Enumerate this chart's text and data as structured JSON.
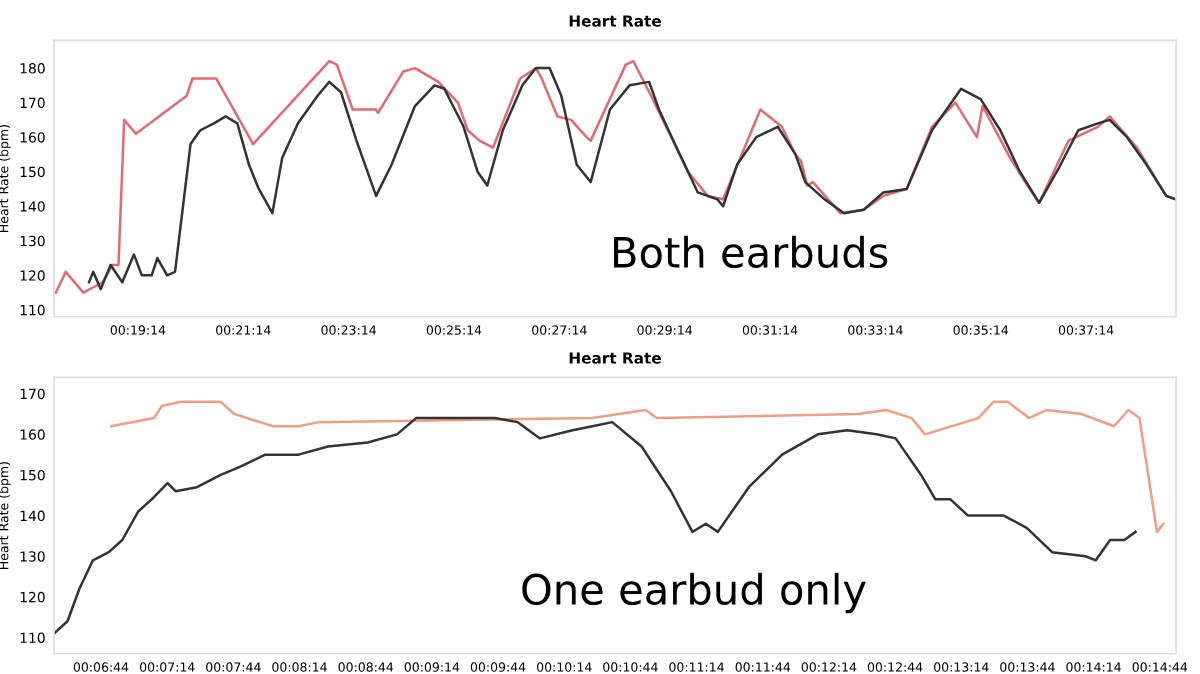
{
  "chart_data": [
    {
      "type": "line",
      "title": "Heart Rate",
      "ylabel": "Heart Rate (bpm)",
      "annotations": [
        "Both earbuds"
      ],
      "xlim": [
        0.294,
        0.649
      ],
      "ylim": [
        108,
        188
      ],
      "xticks": [
        {
          "value": 0.32056,
          "label": "00:19:14"
        },
        {
          "value": 0.35389,
          "label": "00:21:14"
        },
        {
          "value": 0.38722,
          "label": "00:23:14"
        },
        {
          "value": 0.42056,
          "label": "00:25:14"
        },
        {
          "value": 0.45389,
          "label": "00:27:14"
        },
        {
          "value": 0.48722,
          "label": "00:29:14"
        },
        {
          "value": 0.52056,
          "label": "00:31:14"
        },
        {
          "value": 0.55389,
          "label": "00:33:14"
        },
        {
          "value": 0.58722,
          "label": "00:35:14"
        },
        {
          "value": 0.62056,
          "label": "00:37:14"
        }
      ],
      "yticks": [
        110,
        120,
        130,
        140,
        150,
        160,
        170,
        180
      ],
      "grid": false,
      "legend": false,
      "series": [
        {
          "color": "#e26a74",
          "x": [
            0.2946,
            0.2977,
            0.3033,
            0.3094,
            0.3125,
            0.3144,
            0.3162,
            0.3199,
            0.336,
            0.3378,
            0.3453,
            0.357,
            0.3811,
            0.3835,
            0.3885,
            0.3959,
            0.3965,
            0.4045,
            0.4082,
            0.4156,
            0.4218,
            0.4249,
            0.4286,
            0.4329,
            0.4415,
            0.4465,
            0.4483,
            0.4533,
            0.4576,
            0.4625,
            0.4638,
            0.4749,
            0.4773,
            0.4829,
            0.4946,
            0.5008,
            0.5057,
            0.5175,
            0.5243,
            0.5286,
            0.5304,
            0.5323,
            0.5341,
            0.5428,
            0.5502,
            0.5564,
            0.5638,
            0.5718,
            0.5792,
            0.586,
            0.5878,
            0.5965,
            0.6027,
            0.6057,
            0.615,
            0.6243,
            0.628,
            0.6366,
            0.6459,
            0.649
          ],
          "values": [
            115,
            121,
            115,
            118,
            123,
            123,
            165,
            161,
            172,
            177,
            177,
            158,
            182,
            181,
            168,
            168,
            167,
            179,
            180,
            176,
            170,
            162,
            159,
            157,
            177,
            180,
            177,
            166,
            165,
            160,
            159,
            181,
            182,
            172,
            150,
            143,
            142,
            168,
            163,
            155,
            153,
            146,
            147,
            138,
            139,
            143,
            145,
            163,
            170,
            160,
            169,
            154,
            145,
            141,
            159,
            163,
            166,
            157,
            143,
            142
          ]
        },
        {
          "color": "#333333",
          "x": [
            0.3051,
            0.3064,
            0.3088,
            0.3119,
            0.3156,
            0.3193,
            0.3218,
            0.3249,
            0.3267,
            0.3298,
            0.3323,
            0.3372,
            0.3403,
            0.3446,
            0.3483,
            0.352,
            0.3557,
            0.3588,
            0.3631,
            0.3662,
            0.3712,
            0.3774,
            0.3811,
            0.3848,
            0.3897,
            0.3959,
            0.4008,
            0.4082,
            0.4144,
            0.4175,
            0.4236,
            0.428,
            0.4311,
            0.436,
            0.4422,
            0.4465,
            0.4508,
            0.4545,
            0.4594,
            0.4638,
            0.4699,
            0.4761,
            0.4823,
            0.4854,
            0.4915,
            0.4977,
            0.5039,
            0.5057,
            0.5101,
            0.5162,
            0.523,
            0.5286,
            0.5317,
            0.5378,
            0.544,
            0.5502,
            0.5564,
            0.5638,
            0.5718,
            0.581,
            0.5872,
            0.5934,
            0.5996,
            0.6057,
            0.6119,
            0.6181,
            0.6243,
            0.628,
            0.6335,
            0.6397,
            0.6459,
            0.649
          ],
          "values": [
            118,
            121,
            116,
            123,
            118,
            126,
            120,
            120,
            125,
            120,
            121,
            158,
            162,
            164,
            166,
            164,
            152,
            145,
            138,
            154,
            164,
            172,
            176,
            173,
            159,
            143,
            152,
            169,
            175,
            174,
            163,
            150,
            146,
            162,
            175,
            180,
            180,
            172,
            152,
            147,
            168,
            175,
            176,
            168,
            156,
            144,
            142,
            140,
            152,
            160,
            163,
            155,
            147,
            142,
            138,
            139,
            144,
            145,
            162,
            174,
            171,
            162,
            150,
            141,
            151,
            162,
            164,
            165,
            160,
            152,
            143,
            142
          ]
        }
      ]
    },
    {
      "type": "line",
      "title": "Heart Rate",
      "ylabel": "Heart Rate (bpm)",
      "annotations": [
        "One earbud only"
      ],
      "xlim": [
        0.1063,
        0.2476
      ],
      "ylim": [
        106,
        174
      ],
      "xticks": [
        {
          "value": 0.11222,
          "label": "00:06:44"
        },
        {
          "value": 0.12056,
          "label": "00:07:14"
        },
        {
          "value": 0.12889,
          "label": "00:07:44"
        },
        {
          "value": 0.13722,
          "label": "00:08:14"
        },
        {
          "value": 0.14556,
          "label": "00:08:44"
        },
        {
          "value": 0.15389,
          "label": "00:09:14"
        },
        {
          "value": 0.16222,
          "label": "00:09:44"
        },
        {
          "value": 0.17056,
          "label": "00:10:14"
        },
        {
          "value": 0.17889,
          "label": "00:10:44"
        },
        {
          "value": 0.18722,
          "label": "00:11:14"
        },
        {
          "value": 0.19556,
          "label": "00:11:44"
        },
        {
          "value": 0.20389,
          "label": "00:12:14"
        },
        {
          "value": 0.21222,
          "label": "00:12:44"
        },
        {
          "value": 0.22056,
          "label": "00:13:14"
        },
        {
          "value": 0.22889,
          "label": "00:13:44"
        },
        {
          "value": 0.23722,
          "label": "00:14:14"
        },
        {
          "value": 0.24556,
          "label": "00:14:44"
        }
      ],
      "yticks": [
        110,
        120,
        130,
        140,
        150,
        160,
        170
      ],
      "grid": false,
      "legend": false,
      "series": [
        {
          "color": "#eb9f86",
          "x": [
            0.1135,
            0.1189,
            0.1199,
            0.1223,
            0.1273,
            0.129,
            0.1339,
            0.1371,
            0.1396,
            0.1741,
            0.1808,
            0.1822,
            0.2076,
            0.2111,
            0.2143,
            0.216,
            0.2227,
            0.2246,
            0.2264,
            0.2291,
            0.2313,
            0.2357,
            0.2398,
            0.2416,
            0.243,
            0.2452,
            0.246
          ],
          "values": [
            162,
            164,
            167,
            168,
            168,
            165,
            162,
            162,
            163,
            164,
            166,
            164,
            165,
            166,
            164,
            160,
            164,
            168,
            168,
            164,
            166,
            165,
            162,
            166,
            164,
            136,
            138
          ]
        },
        {
          "color": "#333333",
          "x": [
            0.1063,
            0.108,
            0.1095,
            0.1112,
            0.1132,
            0.1149,
            0.1169,
            0.1186,
            0.1206,
            0.1216,
            0.1243,
            0.1273,
            0.1297,
            0.1329,
            0.1371,
            0.1408,
            0.1458,
            0.1495,
            0.1519,
            0.1593,
            0.1618,
            0.1647,
            0.1675,
            0.1716,
            0.1741,
            0.1766,
            0.1803,
            0.184,
            0.1867,
            0.1884,
            0.1899,
            0.1938,
            0.198,
            0.2025,
            0.2062,
            0.2099,
            0.2123,
            0.2155,
            0.2173,
            0.2192,
            0.2214,
            0.2234,
            0.2259,
            0.2288,
            0.232,
            0.2362,
            0.2375,
            0.2393,
            0.2411,
            0.2425
          ],
          "values": [
            111,
            114,
            122,
            129,
            131,
            134,
            141,
            144,
            148,
            146,
            147,
            150,
            152,
            155,
            155,
            157,
            158,
            160,
            164,
            164,
            164,
            163,
            159,
            161,
            162,
            163,
            157,
            146,
            136,
            138,
            136,
            147,
            155,
            160,
            161,
            160,
            159,
            150,
            144,
            144,
            140,
            140,
            140,
            137,
            131,
            130,
            129,
            134,
            134,
            136
          ]
        }
      ]
    }
  ]
}
